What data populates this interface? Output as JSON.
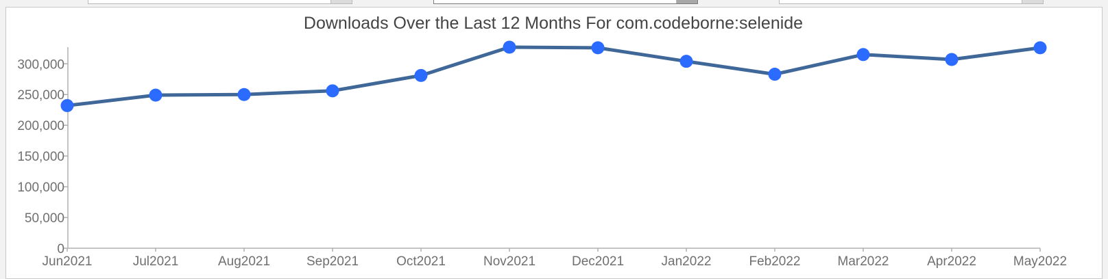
{
  "chart_data": {
    "type": "line",
    "title": "Downloads Over the Last 12 Months For com.codeborne:selenide",
    "xlabel": "",
    "ylabel": "",
    "categories": [
      "Jun2021",
      "Jul2021",
      "Aug2021",
      "Sep2021",
      "Oct2021",
      "Nov2021",
      "Dec2021",
      "Jan2022",
      "Feb2022",
      "Mar2022",
      "Apr2022",
      "May2022"
    ],
    "series": [
      {
        "values": [
          232000,
          249000,
          250000,
          256000,
          281000,
          327000,
          326000,
          304000,
          283000,
          315000,
          307000,
          326000
        ]
      }
    ],
    "ylim": [
      0,
      327000
    ],
    "yticks": [
      0,
      50000,
      100000,
      150000,
      200000,
      250000,
      300000
    ],
    "ytick_labels": [
      "0",
      "50,000",
      "100,000",
      "150,000",
      "200,000",
      "250,000",
      "300,000"
    ],
    "grid": false,
    "legend": "none",
    "colors": {
      "line": "#3f6899",
      "marker": "#2b6bff",
      "axis": "#b0b0b0",
      "title": "#444444",
      "tick_text": "#6f6f6f"
    }
  }
}
